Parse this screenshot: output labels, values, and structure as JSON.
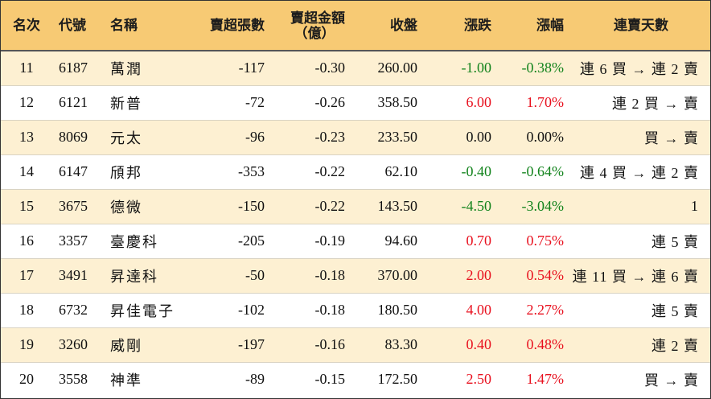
{
  "headers": {
    "rank": "名次",
    "code": "代號",
    "name": "名稱",
    "sell_volume": "賣超張數",
    "sell_amount_line1": "賣超金額",
    "sell_amount_line2": "（億）",
    "close": "收盤",
    "change": "漲跌",
    "change_pct": "漲幅",
    "streak": "連賣天數"
  },
  "colors": {
    "header_bg": "#f7ca74",
    "odd_row_bg": "#fdf0d2",
    "even_row_bg": "#ffffff",
    "up": "#e8101e",
    "down": "#12831c",
    "flat": "#111111"
  },
  "rows": [
    {
      "rank": "11",
      "code": "6187",
      "name": "萬潤",
      "sell_volume": "-117",
      "sell_amount": "-0.30",
      "close": "260.00",
      "change": "-1.00",
      "change_pct": "-0.38%",
      "trend": "down",
      "streak": "連 6 買 → 連 2 賣"
    },
    {
      "rank": "12",
      "code": "6121",
      "name": "新普",
      "sell_volume": "-72",
      "sell_amount": "-0.26",
      "close": "358.50",
      "change": "6.00",
      "change_pct": "1.70%",
      "trend": "up",
      "streak": "連 2 買 → 賣"
    },
    {
      "rank": "13",
      "code": "8069",
      "name": "元太",
      "sell_volume": "-96",
      "sell_amount": "-0.23",
      "close": "233.50",
      "change": "0.00",
      "change_pct": "0.00%",
      "trend": "flat",
      "streak": "買 → 賣"
    },
    {
      "rank": "14",
      "code": "6147",
      "name": "頎邦",
      "sell_volume": "-353",
      "sell_amount": "-0.22",
      "close": "62.10",
      "change": "-0.40",
      "change_pct": "-0.64%",
      "trend": "down",
      "streak": "連 4 買 → 連 2 賣"
    },
    {
      "rank": "15",
      "code": "3675",
      "name": "德微",
      "sell_volume": "-150",
      "sell_amount": "-0.22",
      "close": "143.50",
      "change": "-4.50",
      "change_pct": "-3.04%",
      "trend": "down",
      "streak": "1"
    },
    {
      "rank": "16",
      "code": "3357",
      "name": "臺慶科",
      "sell_volume": "-205",
      "sell_amount": "-0.19",
      "close": "94.60",
      "change": "0.70",
      "change_pct": "0.75%",
      "trend": "up",
      "streak": "連 5 賣"
    },
    {
      "rank": "17",
      "code": "3491",
      "name": "昇達科",
      "sell_volume": "-50",
      "sell_amount": "-0.18",
      "close": "370.00",
      "change": "2.00",
      "change_pct": "0.54%",
      "trend": "up",
      "streak": "連 11 買 → 連 6 賣"
    },
    {
      "rank": "18",
      "code": "6732",
      "name": "昇佳電子",
      "sell_volume": "-102",
      "sell_amount": "-0.18",
      "close": "180.50",
      "change": "4.00",
      "change_pct": "2.27%",
      "trend": "up",
      "streak": "連 5 賣"
    },
    {
      "rank": "19",
      "code": "3260",
      "name": "威剛",
      "sell_volume": "-197",
      "sell_amount": "-0.16",
      "close": "83.30",
      "change": "0.40",
      "change_pct": "0.48%",
      "trend": "up",
      "streak": "連 2 賣"
    },
    {
      "rank": "20",
      "code": "3558",
      "name": "神準",
      "sell_volume": "-89",
      "sell_amount": "-0.15",
      "close": "172.50",
      "change": "2.50",
      "change_pct": "1.47%",
      "trend": "up",
      "streak": "買 → 賣"
    }
  ]
}
